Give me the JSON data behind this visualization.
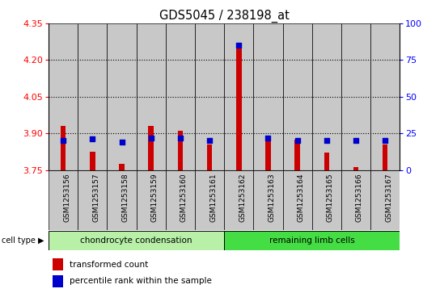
{
  "title": "GDS5045 / 238198_at",
  "samples": [
    "GSM1253156",
    "GSM1253157",
    "GSM1253158",
    "GSM1253159",
    "GSM1253160",
    "GSM1253161",
    "GSM1253162",
    "GSM1253163",
    "GSM1253164",
    "GSM1253165",
    "GSM1253166",
    "GSM1253167"
  ],
  "red_values": [
    3.93,
    3.825,
    3.775,
    3.93,
    3.91,
    3.855,
    4.27,
    3.89,
    3.875,
    3.82,
    3.762,
    3.855
  ],
  "blue_percentiles": [
    20,
    21,
    19,
    22,
    22,
    20,
    85,
    22,
    20,
    20,
    20,
    20
  ],
  "baseline": 3.75,
  "ylim_left": [
    3.75,
    4.35
  ],
  "ylim_right": [
    0,
    100
  ],
  "yticks_left": [
    3.75,
    3.9,
    4.05,
    4.2,
    4.35
  ],
  "yticks_right": [
    0,
    25,
    50,
    75,
    100
  ],
  "group1_count": 6,
  "group1_label": "chondrocyte condensation",
  "group2_label": "remaining limb cells",
  "group1_color": "#b8f0a8",
  "group2_color": "#44dd44",
  "bar_color": "#CC0000",
  "blue_color": "#0000CC",
  "col_bg_color": "#C8C8C8",
  "bar_width": 0.18,
  "legend_label1": "transformed count",
  "legend_label2": "percentile rank within the sample",
  "cell_type_text": "cell type"
}
